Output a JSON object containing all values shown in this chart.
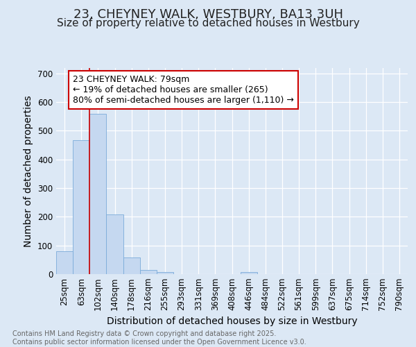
{
  "title1": "23, CHEYNEY WALK, WESTBURY, BA13 3UH",
  "title2": "Size of property relative to detached houses in Westbury",
  "xlabel": "Distribution of detached houses by size in Westbury",
  "ylabel": "Number of detached properties",
  "categories": [
    "25sqm",
    "63sqm",
    "102sqm",
    "140sqm",
    "178sqm",
    "216sqm",
    "255sqm",
    "293sqm",
    "331sqm",
    "369sqm",
    "408sqm",
    "446sqm",
    "484sqm",
    "522sqm",
    "561sqm",
    "599sqm",
    "637sqm",
    "675sqm",
    "714sqm",
    "752sqm",
    "790sqm"
  ],
  "values": [
    80,
    468,
    560,
    208,
    57,
    15,
    7,
    0,
    0,
    0,
    0,
    7,
    0,
    0,
    0,
    0,
    0,
    0,
    0,
    0,
    0
  ],
  "bar_color": "#c5d8f0",
  "bar_edge_color": "#7aabda",
  "red_line_x": 1.5,
  "ylim": [
    0,
    720
  ],
  "yticks": [
    0,
    100,
    200,
    300,
    400,
    500,
    600,
    700
  ],
  "annotation_text": "23 CHEYNEY WALK: 79sqm\n← 19% of detached houses are smaller (265)\n80% of semi-detached houses are larger (1,110) →",
  "annotation_box_color": "#ffffff",
  "annotation_border_color": "#cc0000",
  "footer_text": "Contains HM Land Registry data © Crown copyright and database right 2025.\nContains public sector information licensed under the Open Government Licence v3.0.",
  "background_color": "#dce8f5",
  "plot_bg_color": "#dce8f5",
  "grid_color": "#ffffff",
  "title_fontsize": 13,
  "subtitle_fontsize": 11,
  "tick_fontsize": 8.5,
  "ylabel_fontsize": 10,
  "xlabel_fontsize": 10,
  "footer_fontsize": 7,
  "ann_fontsize": 9
}
